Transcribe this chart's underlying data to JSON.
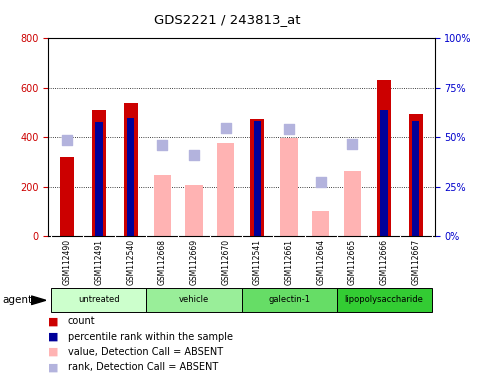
{
  "title": "GDS2221 / 243813_at",
  "samples": [
    "GSM112490",
    "GSM112491",
    "GSM112540",
    "GSM112668",
    "GSM112669",
    "GSM112670",
    "GSM112541",
    "GSM112661",
    "GSM112664",
    "GSM112665",
    "GSM112666",
    "GSM112667"
  ],
  "groups": [
    {
      "label": "untreated",
      "color": "#ccffcc",
      "indices": [
        0,
        1,
        2
      ]
    },
    {
      "label": "vehicle",
      "color": "#99ee99",
      "indices": [
        3,
        4,
        5
      ]
    },
    {
      "label": "galectin-1",
      "color": "#66dd66",
      "indices": [
        6,
        7,
        8
      ]
    },
    {
      "label": "lipopolysaccharide",
      "color": "#33cc33",
      "indices": [
        9,
        10,
        11
      ]
    }
  ],
  "count_values": [
    320,
    510,
    540,
    null,
    null,
    null,
    475,
    null,
    null,
    null,
    630,
    495
  ],
  "percentile_values": [
    null,
    460,
    480,
    null,
    null,
    null,
    465,
    null,
    null,
    null,
    510,
    465
  ],
  "absent_value_values": [
    null,
    null,
    null,
    248,
    205,
    378,
    null,
    398,
    100,
    264,
    null,
    null
  ],
  "absent_rank_values": [
    390,
    null,
    null,
    368,
    330,
    438,
    null,
    435,
    220,
    372,
    null,
    null
  ],
  "ylim_left": [
    0,
    800
  ],
  "ylim_right": [
    0,
    100
  ],
  "yticks_left": [
    0,
    200,
    400,
    600,
    800
  ],
  "yticks_right": [
    0,
    25,
    50,
    75,
    100
  ],
  "yticklabels_left": [
    "0",
    "200",
    "400",
    "600",
    "800"
  ],
  "yticklabels_right": [
    "0%",
    "25%",
    "50%",
    "75%",
    "100%"
  ],
  "left_tick_color": "#cc0000",
  "right_tick_color": "#0000cc",
  "count_color": "#cc0000",
  "percentile_color": "#000099",
  "absent_value_color": "#ffb3b3",
  "absent_rank_color": "#b3b3dd",
  "grid_color": "#000000",
  "bg_color": "#ffffff",
  "plot_bg_color": "#ffffff",
  "xtick_bg_color": "#d0d0d0",
  "marker_size": 60
}
